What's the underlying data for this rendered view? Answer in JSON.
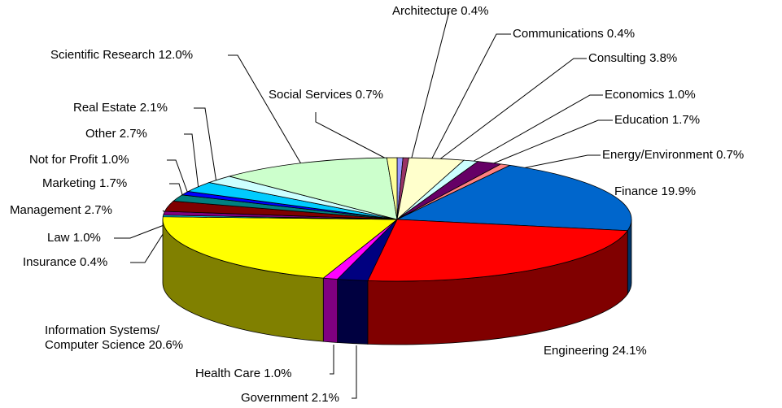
{
  "chart_data": {
    "type": "pie3d",
    "categories": [
      "Architecture",
      "Communications",
      "Consulting",
      "Economics",
      "Education",
      "Energy/Environment",
      "Finance",
      "Engineering",
      "Government",
      "Health Care",
      "Information Systems/ Computer Science",
      "Insurance",
      "Law",
      "Management",
      "Marketing",
      "Not for Profit",
      "Other",
      "Real Estate",
      "Scientific Research",
      "Social Services"
    ],
    "values": [
      0.4,
      0.4,
      3.8,
      1.0,
      1.7,
      0.7,
      19.9,
      24.1,
      2.1,
      1.0,
      20.6,
      0.4,
      1.0,
      2.7,
      1.7,
      1.0,
      2.7,
      2.1,
      12.0,
      0.7
    ],
    "value_labels": [
      "0.4%",
      "0.4%",
      "3.8%",
      "1.0%",
      "1.7%",
      "0.7%",
      "19.9%",
      "24.1%",
      "2.1%",
      "1.0%",
      "20.6%",
      "0.4%",
      "1.0%",
      "2.7%",
      "1.7%",
      "1.0%",
      "2.7%",
      "2.1%",
      "12.0%",
      "0.7%"
    ],
    "colors": [
      "#9999ff",
      "#993366",
      "#ffffcc",
      "#ccffff",
      "#660066",
      "#ff8080",
      "#0066cc",
      "#ff0000",
      "#000080",
      "#ff00ff",
      "#ffff00",
      "#00ffff",
      "#800080",
      "#800000",
      "#008080",
      "#0000ff",
      "#00ccff",
      "#ccffff",
      "#ccffcc",
      "#ffff99"
    ]
  }
}
